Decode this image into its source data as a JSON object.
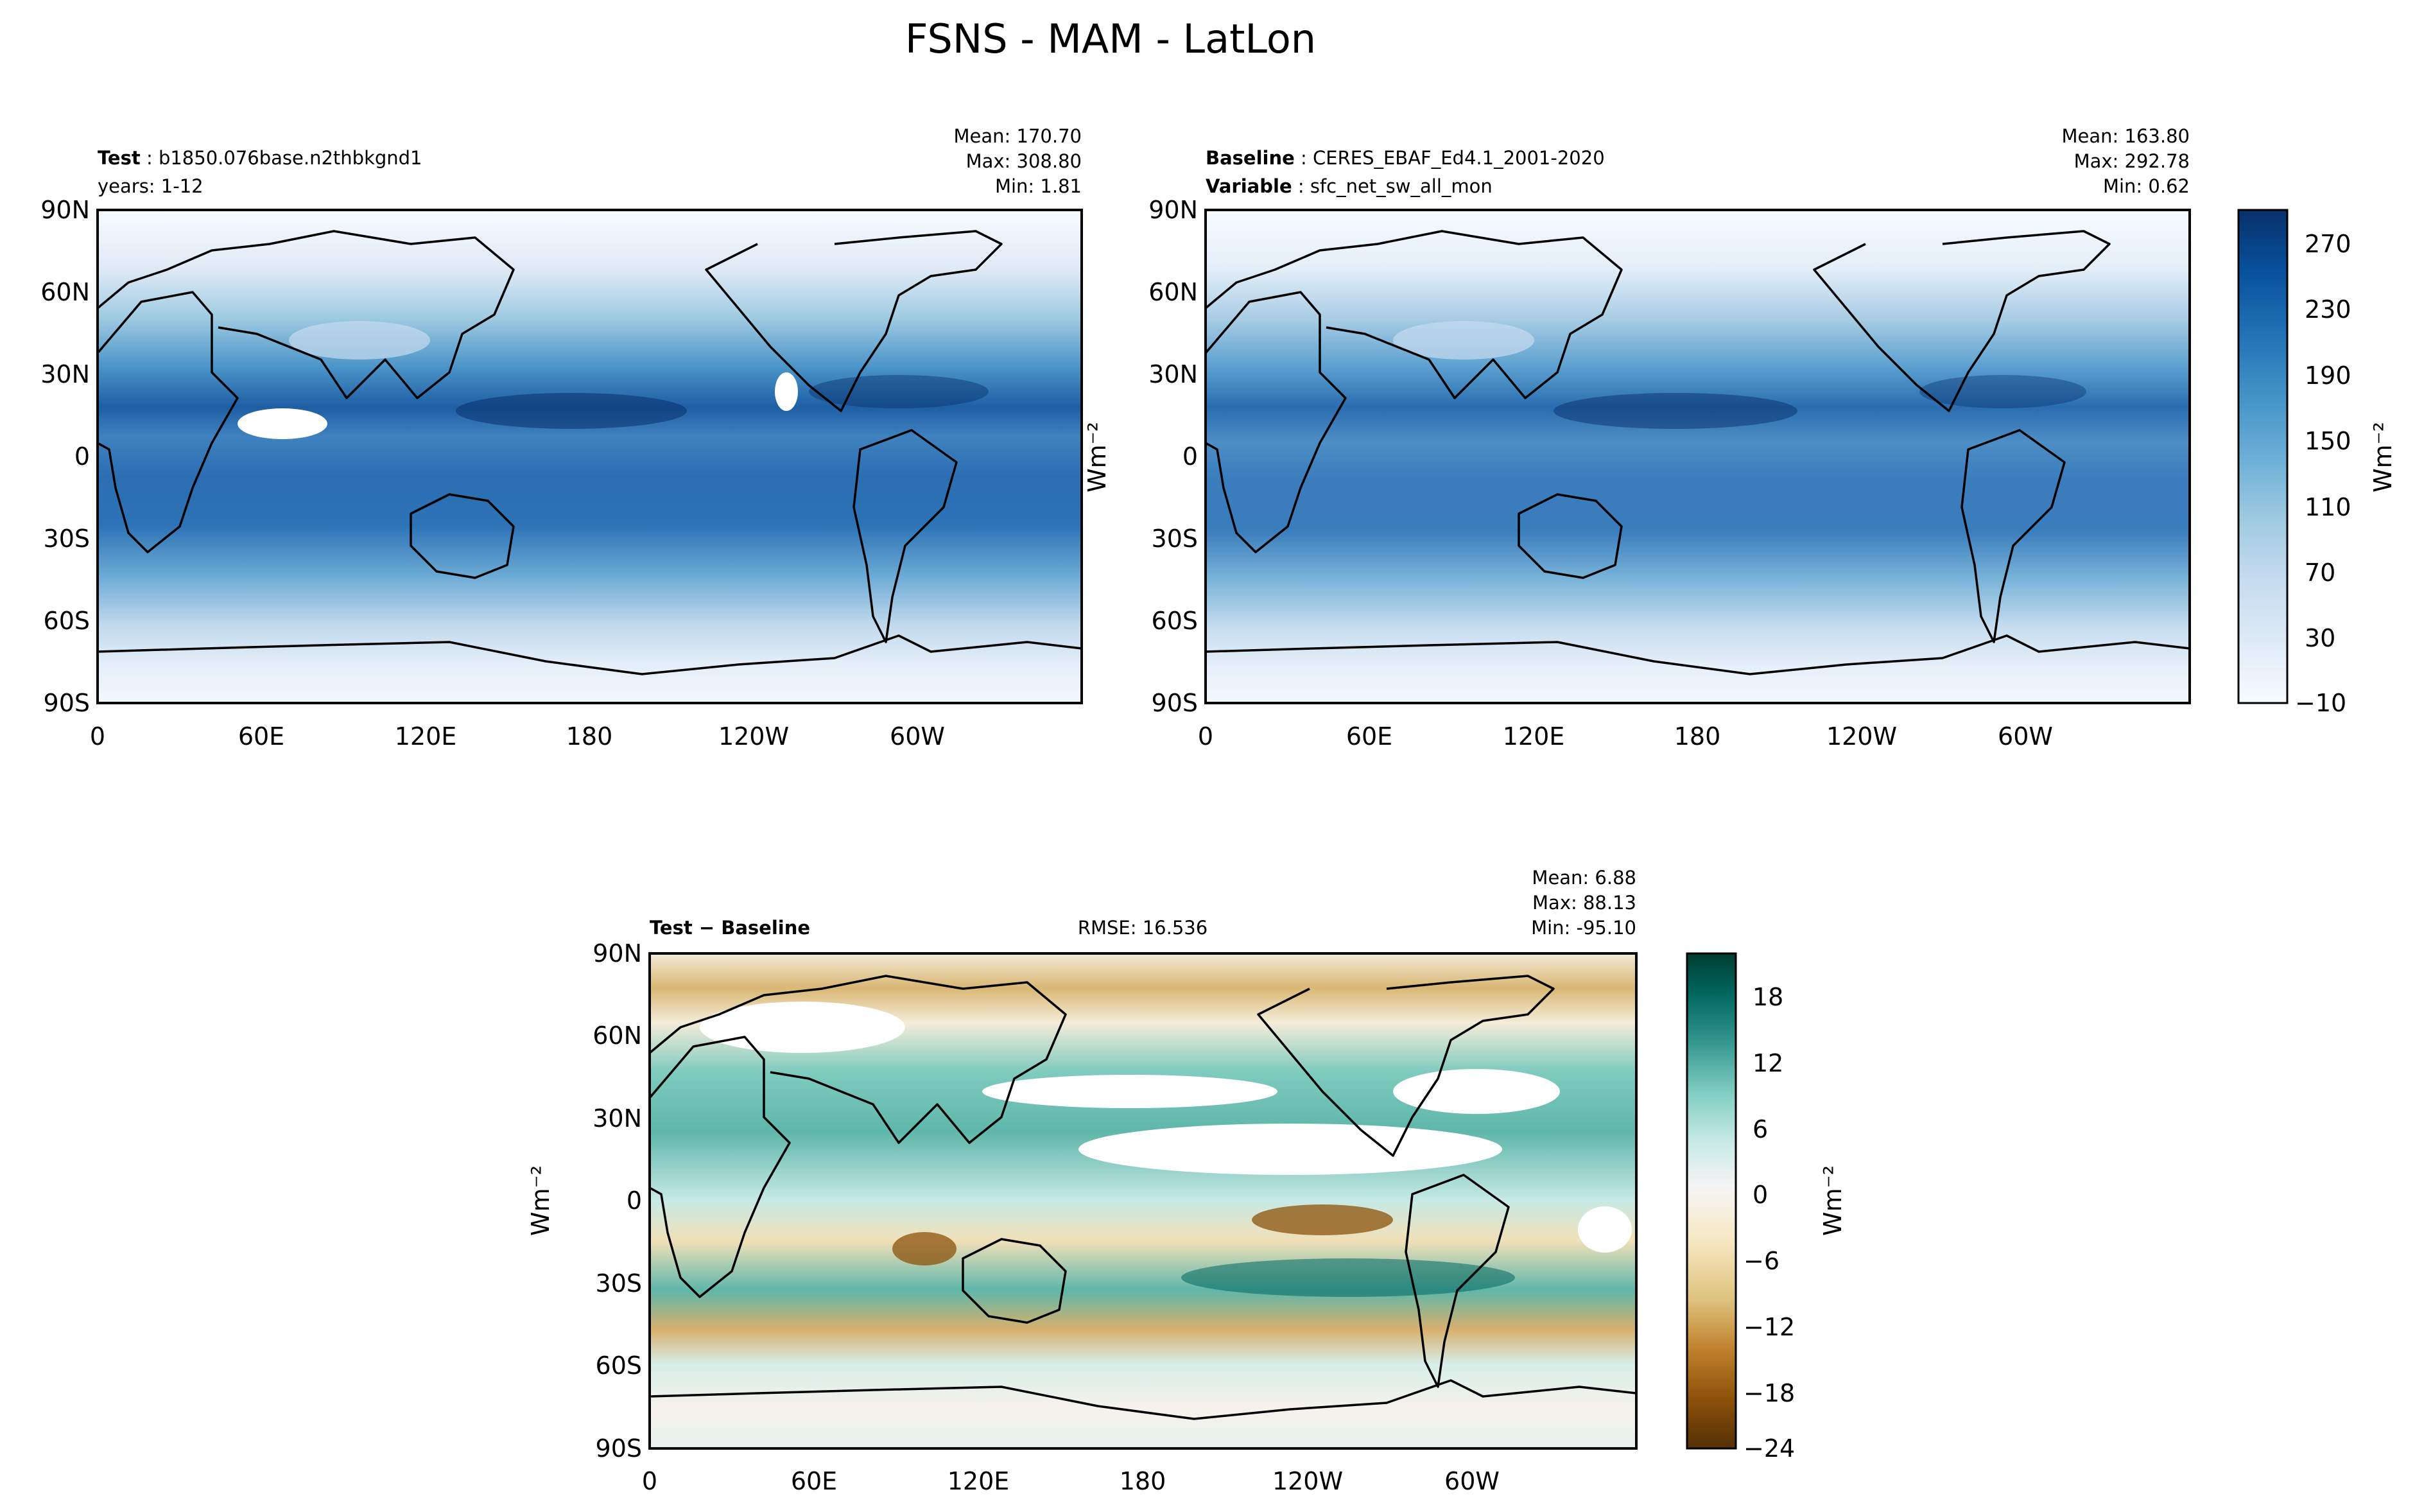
{
  "figure_title": "FSNS - MAM - LatLon",
  "chart_data": [
    {
      "type": "heatmap",
      "name": "test",
      "title_label": "Test",
      "title_value": "b1850.076base.n2thbkgnd1",
      "subtitle": "years: 1-12",
      "stats": {
        "mean": "Mean: 170.70",
        "max": "Max: 308.80",
        "min": "Min:  1.81"
      },
      "xticks": [
        "0",
        "60E",
        "120E",
        "180",
        "120W",
        "60W"
      ],
      "yticks": [
        "90N",
        "60N",
        "30N",
        "0",
        "30S",
        "60S",
        "90S"
      ],
      "xlim": [
        0,
        360
      ],
      "ylim": [
        -90,
        90
      ]
    },
    {
      "type": "heatmap",
      "name": "baseline",
      "title_label": "Baseline",
      "title_value": "CERES_EBAF_Ed4.1_2001-2020",
      "var_label": "Variable",
      "var_value": "sfc_net_sw_all_mon",
      "stats": {
        "mean": "Mean: 163.80",
        "max": "Max: 292.78",
        "min": "Min:  0.62"
      },
      "xticks": [
        "0",
        "60E",
        "120E",
        "180",
        "120W",
        "60W"
      ],
      "yticks": [
        "90N",
        "60N",
        "30N",
        "0",
        "30S",
        "60S",
        "90S"
      ],
      "xlim": [
        0,
        360
      ],
      "ylim": [
        -90,
        90
      ],
      "ylabel": "Wm⁻²",
      "colorbar": {
        "label": "Wm⁻²",
        "ticks": [
          "270",
          "230",
          "190",
          "150",
          "110",
          "70",
          "30",
          "−10"
        ],
        "range": [
          -10,
          290
        ],
        "colormap": "Blues"
      }
    },
    {
      "type": "heatmap",
      "name": "difference",
      "title": "Test − Baseline",
      "rmse": "RMSE: 16.536",
      "stats": {
        "mean": "Mean:  6.88",
        "max": "Max: 88.13",
        "min": "Min: -95.10"
      },
      "xticks": [
        "0",
        "60E",
        "120E",
        "180",
        "120W",
        "60W"
      ],
      "yticks": [
        "90N",
        "60N",
        "30N",
        "0",
        "30S",
        "60S",
        "90S"
      ],
      "xlim": [
        0,
        360
      ],
      "ylim": [
        -90,
        90
      ],
      "ylabel": "Wm⁻²",
      "colorbar": {
        "label": "Wm⁻²",
        "ticks": [
          "18",
          "12",
          "6",
          "0",
          "−6",
          "−12",
          "−18",
          "−24"
        ],
        "range": [
          -24,
          21
        ],
        "colormap": "BrBG"
      }
    }
  ],
  "colors": {
    "blues": [
      "#f7fbff",
      "#deebf7",
      "#c6dbef",
      "#9ecae1",
      "#6baed6",
      "#4292c6",
      "#2171b5",
      "#08519c",
      "#08306b"
    ],
    "brbg": [
      "#543005",
      "#8c510a",
      "#bf812d",
      "#dfc27d",
      "#f6e8c3",
      "#f5f5f5",
      "#c7eae5",
      "#80cdc1",
      "#35978f",
      "#01665e",
      "#003c30"
    ]
  }
}
